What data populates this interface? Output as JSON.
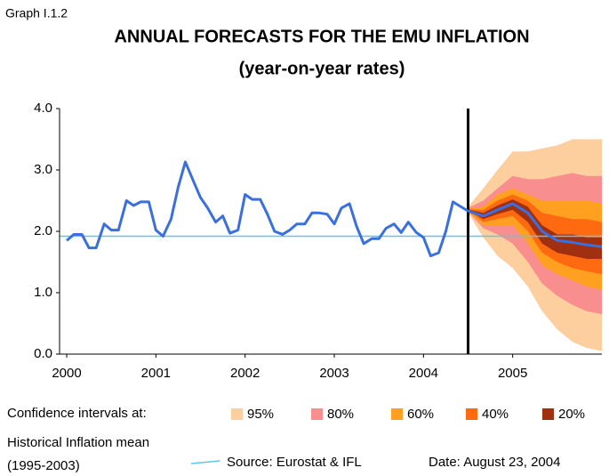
{
  "chart_data": {
    "type": "fan",
    "label": "Graph I.1.2",
    "title": "ANNUAL FORECASTS FOR THE EMU INFLATION",
    "subtitle": "(year-on-year rates)",
    "xlim": [
      1999.92,
      2006.0
    ],
    "xticks": [
      2000,
      2001,
      2002,
      2003,
      2004,
      2005
    ],
    "ylim": [
      0,
      4
    ],
    "yticks": [
      {
        "value": 0,
        "label": "0.0"
      },
      {
        "value": 1,
        "label": "1.0"
      },
      {
        "value": 2,
        "label": "2.0"
      },
      {
        "value": 3,
        "label": "3.0"
      },
      {
        "value": 4,
        "label": "4.0"
      }
    ],
    "line_color": "#3a6fe0",
    "x": [
      2000,
      2000.08,
      2000.17,
      2000.25,
      2000.33,
      2000.42,
      2000.5,
      2000.58,
      2000.67,
      2000.75,
      2000.83,
      2000.92,
      2001,
      2001.08,
      2001.17,
      2001.25,
      2001.33,
      2001.42,
      2001.5,
      2001.58,
      2001.67,
      2001.75,
      2001.83,
      2001.92,
      2002,
      2002.08,
      2002.17,
      2002.25,
      2002.33,
      2002.42,
      2002.5,
      2002.58,
      2002.67,
      2002.75,
      2002.83,
      2002.92,
      2003,
      2003.08,
      2003.17,
      2003.25,
      2003.33,
      2003.42,
      2003.5,
      2003.58,
      2003.67,
      2003.75,
      2003.83,
      2003.92,
      2004,
      2004.08,
      2004.17,
      2004.25,
      2004.33,
      2004.42,
      2004.5
    ],
    "values": [
      1.85,
      1.95,
      1.95,
      1.73,
      1.73,
      2.12,
      2.02,
      2.02,
      2.5,
      2.42,
      2.48,
      2.48,
      2.02,
      1.92,
      2.2,
      2.72,
      3.13,
      2.82,
      2.55,
      2.38,
      2.15,
      2.25,
      1.97,
      2.02,
      2.6,
      2.52,
      2.52,
      2.28,
      2.0,
      1.95,
      2.02,
      2.12,
      2.12,
      2.3,
      2.3,
      2.28,
      2.12,
      2.38,
      2.45,
      2.08,
      1.8,
      1.88,
      1.88,
      2.05,
      2.12,
      1.98,
      2.15,
      1.98,
      1.9,
      1.6,
      1.65,
      2.0,
      2.48,
      2.4,
      2.33
    ],
    "forecast_start": 2004.5,
    "fan_x": [
      2004.5,
      2004.67,
      2004.83,
      2005.0,
      2005.17,
      2005.33,
      2005.5,
      2005.67,
      2005.83,
      2006.0
    ],
    "fan_central": [
      2.33,
      2.25,
      2.35,
      2.45,
      2.3,
      2.0,
      1.85,
      1.82,
      1.78,
      1.75
    ],
    "bands_title": "Confidence intervals at:",
    "bands": [
      {
        "name": "95%",
        "color": "#fdcf9e",
        "upper": [
          2.4,
          2.7,
          3.0,
          3.3,
          3.3,
          3.35,
          3.4,
          3.5,
          3.5,
          3.5
        ],
        "lower": [
          2.3,
          1.9,
          1.6,
          1.4,
          1.1,
          0.7,
          0.4,
          0.2,
          0.1,
          0.05
        ]
      },
      {
        "name": "80%",
        "color": "#f98e8e",
        "upper": [
          2.38,
          2.5,
          2.7,
          2.9,
          2.85,
          2.85,
          2.9,
          2.95,
          2.9,
          2.9
        ],
        "lower": [
          2.32,
          2.05,
          1.95,
          1.8,
          1.5,
          1.15,
          0.95,
          0.8,
          0.7,
          0.65
        ]
      },
      {
        "name": "60%",
        "color": "#ffa020",
        "upper": [
          2.37,
          2.4,
          2.6,
          2.7,
          2.6,
          2.5,
          2.5,
          2.5,
          2.5,
          2.45
        ],
        "lower": [
          2.33,
          2.1,
          2.1,
          2.1,
          1.8,
          1.45,
          1.3,
          1.2,
          1.1,
          1.05
        ]
      },
      {
        "name": "40%",
        "color": "#ff6a10",
        "upper": [
          2.36,
          2.35,
          2.5,
          2.6,
          2.5,
          2.3,
          2.25,
          2.2,
          2.2,
          2.15
        ],
        "lower": [
          2.34,
          2.15,
          2.2,
          2.25,
          2.0,
          1.65,
          1.5,
          1.4,
          1.35,
          1.3
        ]
      },
      {
        "name": "20%",
        "color": "#a03010",
        "upper": [
          2.355,
          2.3,
          2.42,
          2.52,
          2.4,
          2.1,
          1.95,
          1.95,
          1.9,
          1.9
        ],
        "lower": [
          2.345,
          2.2,
          2.28,
          2.35,
          2.15,
          1.8,
          1.65,
          1.6,
          1.55,
          1.55
        ]
      }
    ],
    "mean": {
      "label_lines": [
        "Historical Inflation mean",
        "(1995-2003)"
      ],
      "value": 1.92,
      "color": "#5bc8f0"
    },
    "source": "Source: Eurostat & IFL",
    "date": "Date: August 23, 2004"
  }
}
